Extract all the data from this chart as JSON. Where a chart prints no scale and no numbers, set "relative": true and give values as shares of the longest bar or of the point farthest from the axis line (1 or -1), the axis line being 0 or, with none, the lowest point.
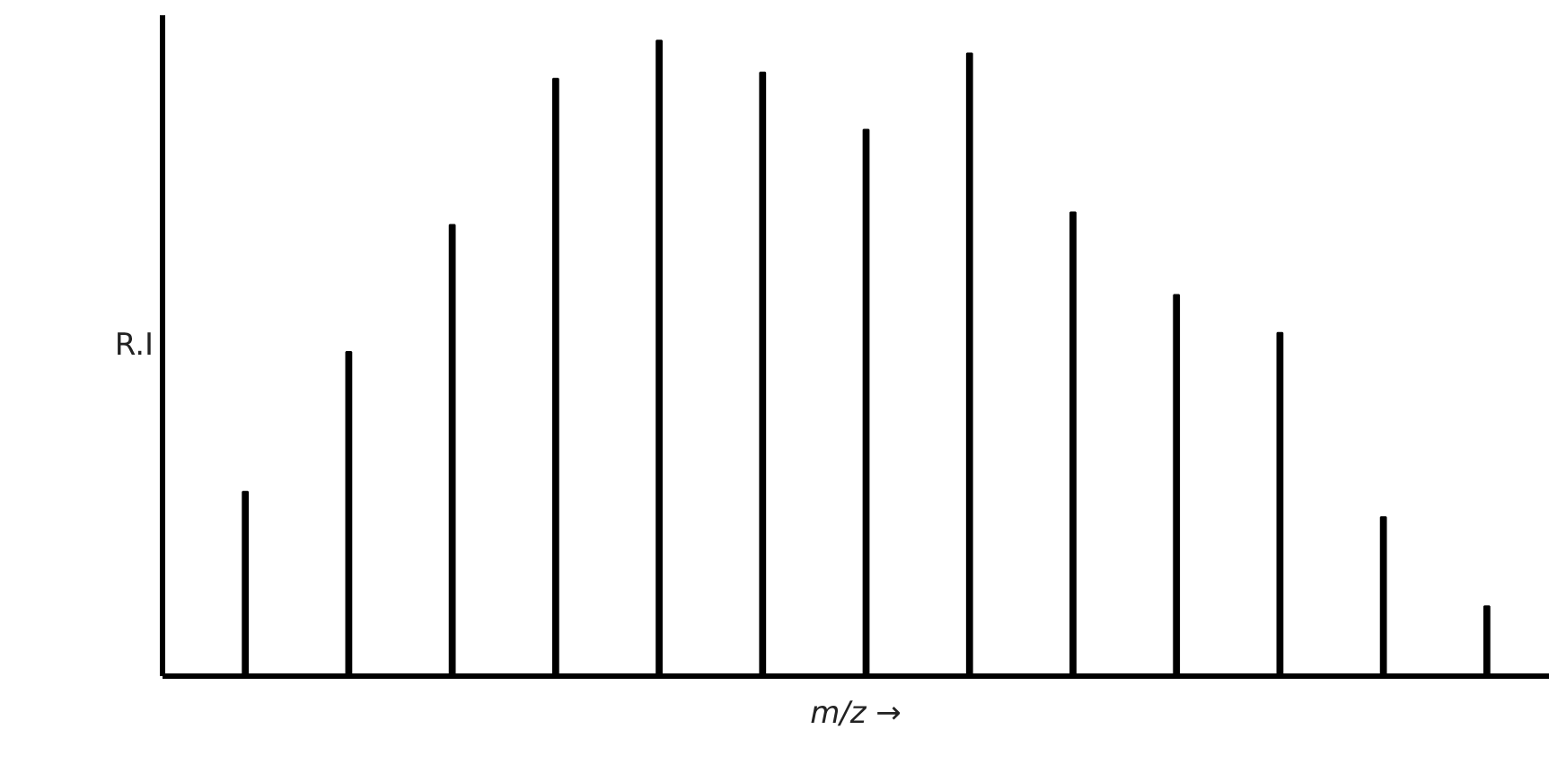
{
  "chart_data": {
    "type": "bar",
    "relative": true,
    "xlabel": "m/z →",
    "ylabel": "R.I",
    "categories": [
      null,
      null,
      null,
      null,
      null,
      null,
      null,
      null,
      null,
      null,
      null,
      null,
      null
    ],
    "values": [
      0.29,
      0.51,
      0.71,
      0.94,
      1,
      0.95,
      0.86,
      0.98,
      0.73,
      0.6,
      0.54,
      0.25,
      0.11
    ],
    "color": "#000000",
    "grid": false
  }
}
